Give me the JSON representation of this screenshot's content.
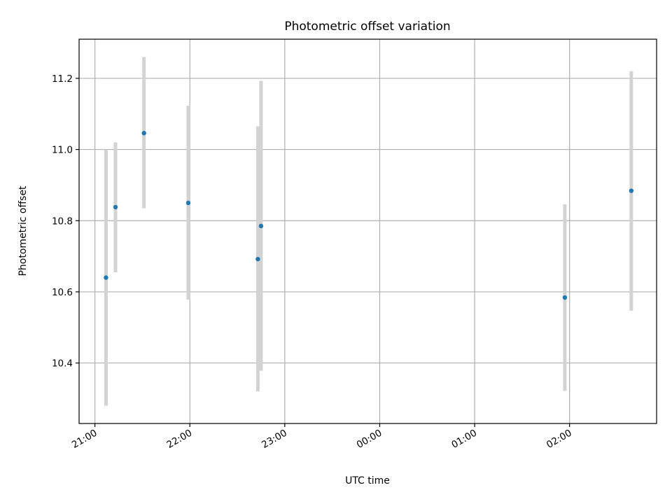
{
  "chart_data": {
    "type": "scatter",
    "title": "Photometric offset variation",
    "xlabel": "UTC time",
    "ylabel": "Photometric offset",
    "xlim": [
      "20:50",
      "02:55"
    ],
    "ylim": [
      10.23,
      11.31
    ],
    "x_ticks": [
      "21:00",
      "22:00",
      "23:00",
      "00:00",
      "01:00",
      "02:00"
    ],
    "y_ticks": [
      10.4,
      10.6,
      10.8,
      11.0,
      11.2
    ],
    "grid": true,
    "legend": "none",
    "point_color": "#1f77b4",
    "errorbar_color": "#d3d3d3",
    "points": [
      {
        "t": "21:07",
        "y": 10.64,
        "ylow": 10.28,
        "yhigh": 11.0
      },
      {
        "t": "21:13",
        "y": 10.838,
        "ylow": 10.655,
        "yhigh": 11.02
      },
      {
        "t": "21:31",
        "y": 11.046,
        "ylow": 10.835,
        "yhigh": 11.26
      },
      {
        "t": "21:59",
        "y": 10.85,
        "ylow": 10.578,
        "yhigh": 11.123
      },
      {
        "t": "22:43",
        "y": 10.692,
        "ylow": 10.32,
        "yhigh": 11.065
      },
      {
        "t": "22:45",
        "y": 10.785,
        "ylow": 10.378,
        "yhigh": 11.193
      },
      {
        "t": "01:57",
        "y": 10.584,
        "ylow": 10.322,
        "yhigh": 10.846
      },
      {
        "t": "02:39",
        "y": 10.884,
        "ylow": 10.547,
        "yhigh": 11.22
      }
    ]
  }
}
